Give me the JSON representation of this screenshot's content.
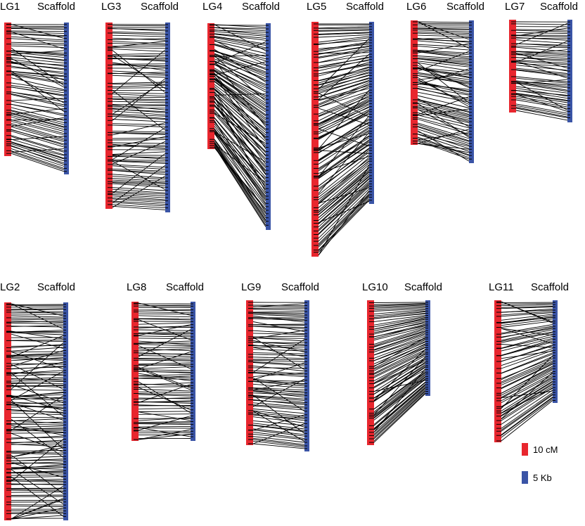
{
  "colors": {
    "genetic_map": "#e8262e",
    "scaffold": "#3a54a6",
    "link": "#000000",
    "marker_tick": "#000000"
  },
  "panels": [
    {
      "id": "LG1",
      "lg_label": "LG1",
      "scaffold_label": "Scaffold",
      "links": 85,
      "crossing": 0.25
    },
    {
      "id": "LG3",
      "lg_label": "LG3",
      "scaffold_label": "Scaffold",
      "links": 110,
      "crossing": 0.15
    },
    {
      "id": "LG4",
      "lg_label": "LG4",
      "scaffold_label": "Scaffold",
      "links": 110,
      "crossing": 0.25
    },
    {
      "id": "LG5",
      "lg_label": "LG5",
      "scaffold_label": "Scaffold",
      "links": 130,
      "crossing": 0.2
    },
    {
      "id": "LG6",
      "lg_label": "LG6",
      "scaffold_label": "Scaffold",
      "links": 90,
      "crossing": 0.3
    },
    {
      "id": "LG7",
      "lg_label": "LG7",
      "scaffold_label": "Scaffold",
      "links": 60,
      "crossing": 0.3
    },
    {
      "id": "LG2",
      "lg_label": "LG2",
      "scaffold_label": "Scaffold",
      "links": 150,
      "crossing": 0.25
    },
    {
      "id": "LG8",
      "lg_label": "LG8",
      "scaffold_label": "Scaffold",
      "links": 90,
      "crossing": 0.2
    },
    {
      "id": "LG9",
      "lg_label": "LG9",
      "scaffold_label": "Scaffold",
      "links": 95,
      "crossing": 0.15
    },
    {
      "id": "LG10",
      "lg_label": "LG10",
      "scaffold_label": "Scaffold",
      "links": 85,
      "crossing": 0.1
    },
    {
      "id": "LG11",
      "lg_label": "LG11",
      "scaffold_label": "Scaffold",
      "links": 75,
      "crossing": 0.2
    }
  ],
  "legend": [
    {
      "label": "10 cM",
      "color": "#e8262e"
    },
    {
      "label": "5 Kb",
      "color": "#3a54a6"
    }
  ]
}
